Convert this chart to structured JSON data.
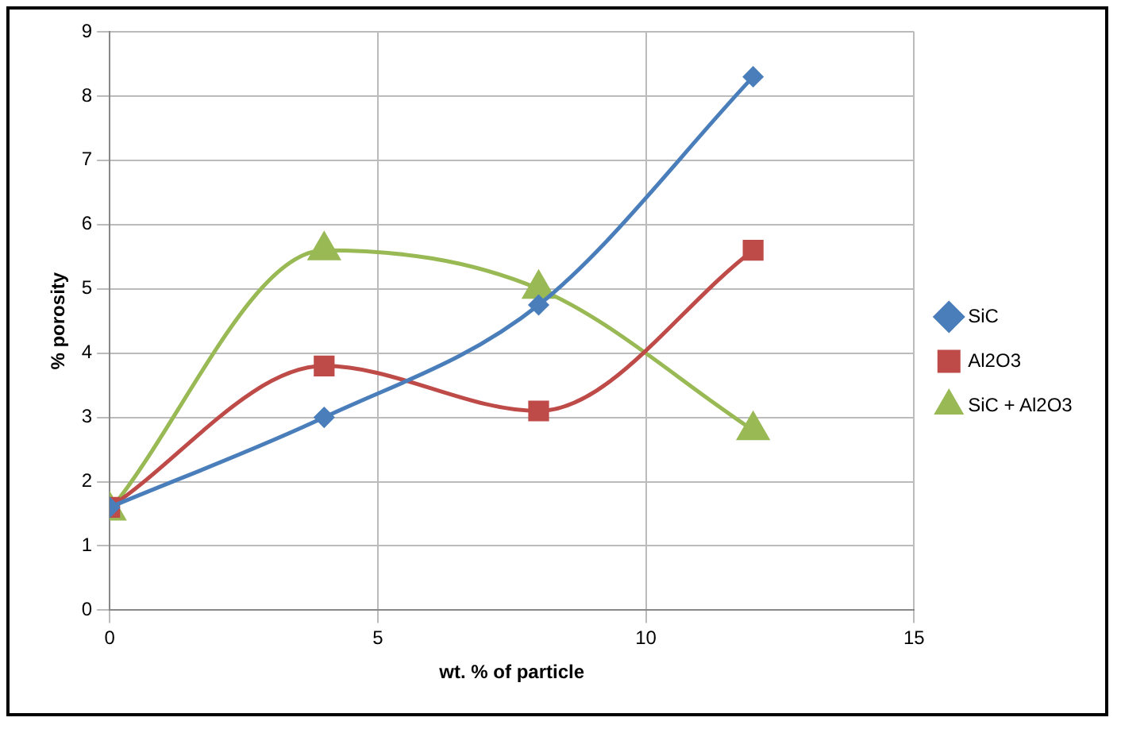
{
  "chart_data": {
    "type": "line",
    "xlabel": "wt. % of particle",
    "ylabel": "% porosity",
    "xlim": [
      0,
      15
    ],
    "xticks": [
      0,
      5,
      10,
      15
    ],
    "ylim": [
      0,
      9
    ],
    "yticks": [
      0,
      1,
      2,
      3,
      4,
      5,
      6,
      7,
      8,
      9
    ],
    "grid": true,
    "legend": "right",
    "x": [
      0,
      4,
      8,
      12
    ],
    "series": [
      {
        "name": "SiC",
        "color": "#4a7ebb",
        "marker": "diamond",
        "values": [
          1.6,
          3.0,
          4.75,
          8.3
        ]
      },
      {
        "name": "Al2O3",
        "color": "#be4b48",
        "marker": "square",
        "values": [
          1.6,
          3.8,
          3.1,
          5.6
        ]
      },
      {
        "name": "SiC + Al2O3",
        "color": "#98b954",
        "marker": "triangle",
        "values": [
          1.55,
          5.6,
          5.0,
          2.8
        ]
      }
    ]
  }
}
